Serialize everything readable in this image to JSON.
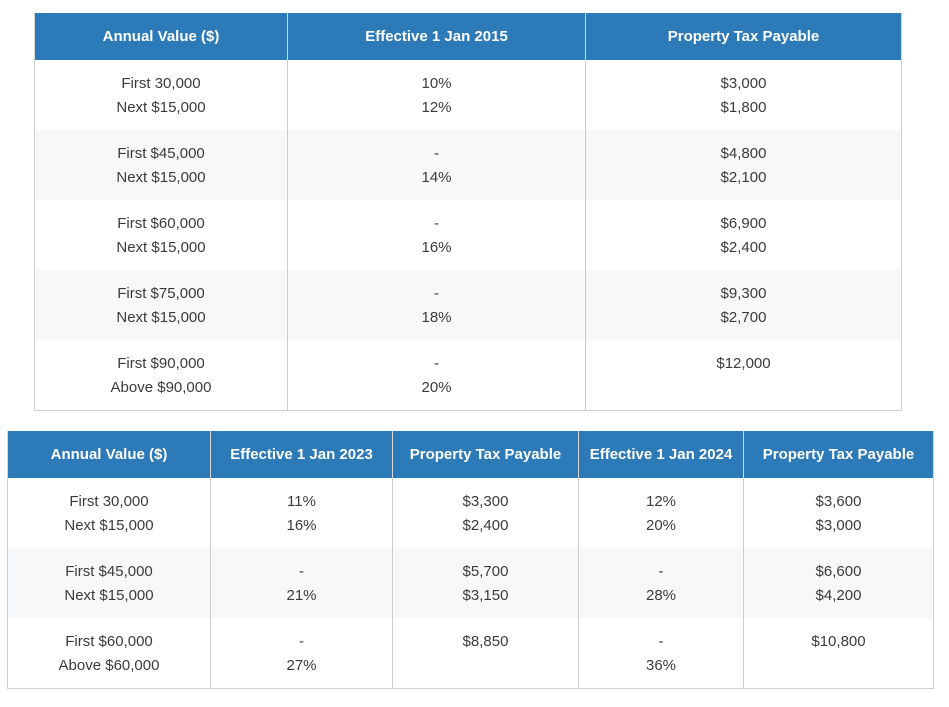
{
  "table_2015": {
    "headers": [
      "Annual Value ($)",
      "Effective 1 Jan 2015",
      "Property Tax Payable"
    ],
    "rows": [
      {
        "band": [
          "First 30,000",
          "Next $15,000"
        ],
        "rate": [
          "10%",
          "12%"
        ],
        "tax": [
          "$3,000",
          "$1,800"
        ]
      },
      {
        "band": [
          "First $45,000",
          "Next $15,000"
        ],
        "rate": [
          "-",
          "14%"
        ],
        "tax": [
          "$4,800",
          "$2,100"
        ]
      },
      {
        "band": [
          "First $60,000",
          "Next $15,000"
        ],
        "rate": [
          "-",
          "16%"
        ],
        "tax": [
          "$6,900",
          "$2,400"
        ]
      },
      {
        "band": [
          "First $75,000",
          "Next $15,000"
        ],
        "rate": [
          "-",
          "18%"
        ],
        "tax": [
          "$9,300",
          "$2,700"
        ]
      },
      {
        "band": [
          "First $90,000",
          "Above $90,000"
        ],
        "rate": [
          "-",
          "20%"
        ],
        "tax": [
          "$12,000",
          ""
        ]
      }
    ]
  },
  "table_2023": {
    "headers": [
      "Annual Value ($)",
      "Effective 1 Jan 2023",
      "Property Tax Payable",
      "Effective 1 Jan 2024",
      "Property Tax Payable"
    ],
    "rows": [
      {
        "band": [
          "First 30,000",
          "Next $15,000"
        ],
        "rate_2023": [
          "11%",
          "16%"
        ],
        "tax_2023": [
          "$3,300",
          "$2,400"
        ],
        "rate_2024": [
          "12%",
          "20%"
        ],
        "tax_2024": [
          "$3,600",
          "$3,000"
        ]
      },
      {
        "band": [
          "First $45,000",
          "Next $15,000"
        ],
        "rate_2023": [
          "-",
          "21%"
        ],
        "tax_2023": [
          "$5,700",
          "$3,150"
        ],
        "rate_2024": [
          "-",
          "28%"
        ],
        "tax_2024": [
          "$6,600",
          "$4,200"
        ]
      },
      {
        "band": [
          "First $60,000",
          "Above $60,000"
        ],
        "rate_2023": [
          "-",
          "27%"
        ],
        "tax_2023": [
          "$8,850",
          ""
        ],
        "rate_2024": [
          "-",
          "36%"
        ],
        "tax_2024": [
          "$10,800",
          ""
        ]
      }
    ]
  }
}
